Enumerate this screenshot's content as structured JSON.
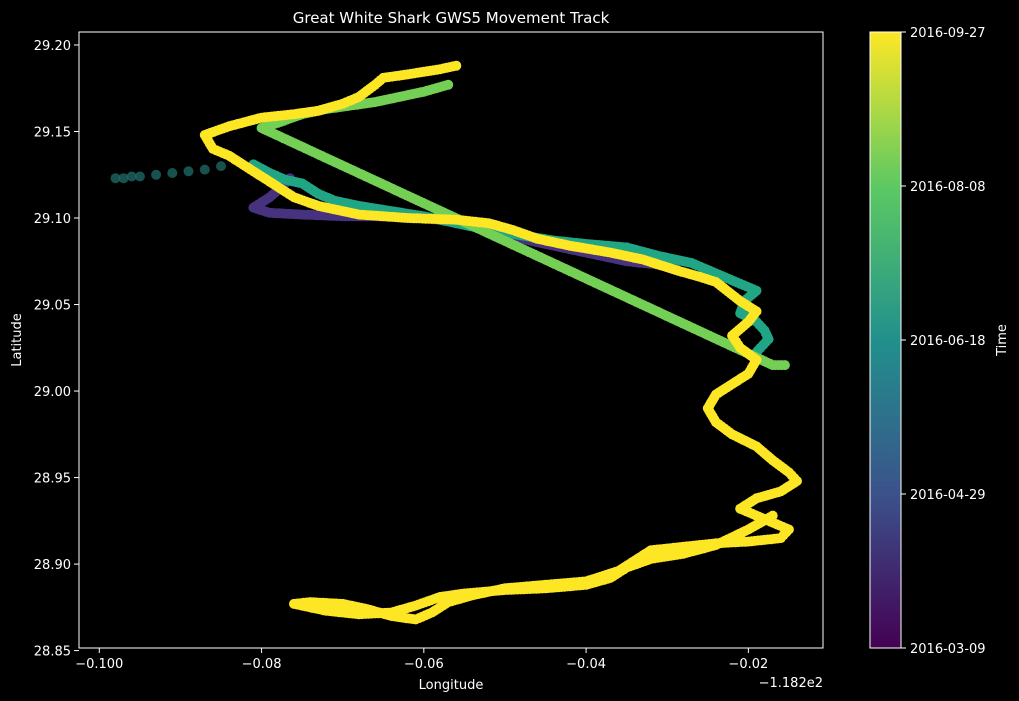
{
  "chart_data": {
    "type": "scatter",
    "title": "Great White Shark GWS5 Movement Track",
    "xlabel": "Longitude",
    "ylabel": "Latitude",
    "x_offset_text": "−1.182e2",
    "xlim": [
      -0.1025,
      -0.0108
    ],
    "ylim": [
      28.8515,
      29.2075
    ],
    "x_ticks": [
      -0.1,
      -0.08,
      -0.06,
      -0.04,
      -0.02
    ],
    "x_tick_labels": [
      "−0.100",
      "−0.08",
      "−0.06",
      "−0.04",
      "−0.02"
    ],
    "y_ticks": [
      28.85,
      28.9,
      28.95,
      29.0,
      29.05,
      29.1,
      29.15,
      29.2
    ],
    "y_tick_labels": [
      "28.85",
      "28.90",
      "28.95",
      "29.00",
      "29.05",
      "29.10",
      "29.15",
      "29.20"
    ],
    "colorbar": {
      "label": "Time",
      "colormap": "viridis",
      "ticks": [
        "2016-03-09",
        "2016-04-29",
        "2016-06-18",
        "2016-08-08",
        "2016-09-27"
      ]
    },
    "series": [
      {
        "color": "#46327e",
        "time_frac": 0.12,
        "alpha": 1.0,
        "points": [
          [
            -0.0765,
            29.123
          ],
          [
            -0.0775,
            29.118
          ],
          [
            -0.079,
            29.112
          ],
          [
            -0.081,
            29.106
          ],
          [
            -0.079,
            29.103
          ],
          [
            -0.075,
            29.102
          ],
          [
            -0.07,
            29.101
          ],
          [
            -0.065,
            29.101
          ],
          [
            -0.06,
            29.1
          ],
          [
            -0.055,
            29.097
          ],
          [
            -0.05,
            29.09
          ],
          [
            -0.045,
            29.085
          ],
          [
            -0.04,
            29.08
          ],
          [
            -0.035,
            29.075
          ],
          [
            -0.031,
            29.073
          ],
          [
            -0.029,
            29.072
          ]
        ]
      },
      {
        "color": "#21a685",
        "time_frac": 0.55,
        "alpha": 1.0,
        "points": [
          [
            -0.081,
            29.131
          ],
          [
            -0.079,
            29.126
          ],
          [
            -0.077,
            29.122
          ],
          [
            -0.075,
            29.12
          ],
          [
            -0.073,
            29.114
          ],
          [
            -0.071,
            29.11
          ],
          [
            -0.068,
            29.107
          ],
          [
            -0.064,
            29.104
          ],
          [
            -0.06,
            29.101
          ],
          [
            -0.056,
            29.097
          ],
          [
            -0.052,
            29.093
          ],
          [
            -0.048,
            29.09
          ],
          [
            -0.044,
            29.087
          ],
          [
            -0.04,
            29.085
          ],
          [
            -0.035,
            29.083
          ],
          [
            -0.031,
            29.078
          ],
          [
            -0.027,
            29.074
          ],
          [
            -0.024,
            29.068
          ],
          [
            -0.021,
            29.062
          ],
          [
            -0.019,
            29.058
          ],
          [
            -0.0205,
            29.052
          ],
          [
            -0.021,
            29.045
          ],
          [
            -0.019,
            29.04
          ],
          [
            -0.018,
            29.035
          ],
          [
            -0.0175,
            29.03
          ],
          [
            -0.0185,
            29.025
          ],
          [
            -0.0195,
            29.02
          ]
        ]
      },
      {
        "color": "#1f6e6a",
        "time_frac": 0.45,
        "alpha": 0.75,
        "points": [
          [
            -0.098,
            29.123
          ],
          [
            -0.097,
            29.123
          ],
          [
            -0.096,
            29.124
          ],
          [
            -0.095,
            29.124
          ],
          [
            -0.093,
            29.125
          ],
          [
            -0.091,
            29.126
          ],
          [
            -0.089,
            29.127
          ],
          [
            -0.087,
            29.128
          ],
          [
            -0.085,
            29.13
          ]
        ]
      },
      {
        "color": "#74d055",
        "time_frac": 0.78,
        "alpha": 1.0,
        "points": [
          [
            -0.057,
            29.177
          ],
          [
            -0.06,
            29.173
          ],
          [
            -0.063,
            29.17
          ],
          [
            -0.066,
            29.167
          ],
          [
            -0.069,
            29.165
          ],
          [
            -0.072,
            29.163
          ],
          [
            -0.075,
            29.16
          ],
          [
            -0.078,
            29.155
          ],
          [
            -0.08,
            29.152
          ],
          [
            -0.017,
            29.015
          ],
          [
            -0.0155,
            29.015
          ]
        ]
      },
      {
        "color": "#fde725",
        "time_frac": 1.0,
        "alpha": 1.0,
        "points": [
          [
            -0.056,
            29.188
          ],
          [
            -0.058,
            29.186
          ],
          [
            -0.062,
            29.183
          ],
          [
            -0.065,
            29.181
          ],
          [
            -0.066,
            29.177
          ],
          [
            -0.068,
            29.17
          ],
          [
            -0.07,
            29.166
          ],
          [
            -0.073,
            29.162
          ],
          [
            -0.076,
            29.16
          ],
          [
            -0.08,
            29.158
          ],
          [
            -0.084,
            29.153
          ],
          [
            -0.087,
            29.148
          ],
          [
            -0.086,
            29.14
          ],
          [
            -0.084,
            29.136
          ],
          [
            -0.082,
            29.13
          ],
          [
            -0.08,
            29.124
          ],
          [
            -0.078,
            29.118
          ],
          [
            -0.076,
            29.112
          ],
          [
            -0.073,
            29.107
          ],
          [
            -0.068,
            29.102
          ],
          [
            -0.062,
            29.1
          ],
          [
            -0.056,
            29.099
          ],
          [
            -0.052,
            29.097
          ],
          [
            -0.049,
            29.093
          ],
          [
            -0.046,
            29.088
          ],
          [
            -0.042,
            29.084
          ],
          [
            -0.037,
            29.08
          ],
          [
            -0.033,
            29.076
          ],
          [
            -0.029,
            29.07
          ],
          [
            -0.026,
            29.066
          ],
          [
            -0.024,
            29.063
          ],
          [
            -0.021,
            29.052
          ],
          [
            -0.019,
            29.046
          ],
          [
            -0.02,
            29.04
          ],
          [
            -0.022,
            29.032
          ],
          [
            -0.021,
            29.025
          ],
          [
            -0.019,
            29.018
          ],
          [
            -0.02,
            29.01
          ],
          [
            -0.022,
            29.004
          ],
          [
            -0.024,
            28.998
          ],
          [
            -0.025,
            28.99
          ],
          [
            -0.024,
            28.982
          ],
          [
            -0.022,
            28.975
          ],
          [
            -0.019,
            28.968
          ],
          [
            -0.017,
            28.96
          ],
          [
            -0.015,
            28.953
          ],
          [
            -0.014,
            28.948
          ],
          [
            -0.016,
            28.942
          ],
          [
            -0.019,
            28.938
          ],
          [
            -0.021,
            28.932
          ],
          [
            -0.018,
            28.926
          ],
          [
            -0.015,
            28.92
          ],
          [
            -0.016,
            28.915
          ],
          [
            -0.02,
            28.913
          ],
          [
            -0.024,
            28.912
          ],
          [
            -0.028,
            28.91
          ],
          [
            -0.032,
            28.908
          ],
          [
            -0.034,
            28.902
          ],
          [
            -0.036,
            28.896
          ],
          [
            -0.04,
            28.89
          ],
          [
            -0.045,
            28.888
          ],
          [
            -0.05,
            28.886
          ],
          [
            -0.054,
            28.882
          ],
          [
            -0.057,
            28.878
          ],
          [
            -0.059,
            28.872
          ],
          [
            -0.061,
            28.868
          ],
          [
            -0.064,
            28.87
          ],
          [
            -0.067,
            28.874
          ],
          [
            -0.07,
            28.877
          ],
          [
            -0.074,
            28.878
          ],
          [
            -0.076,
            28.877
          ],
          [
            -0.072,
            28.873
          ],
          [
            -0.068,
            28.871
          ],
          [
            -0.064,
            28.872
          ],
          [
            -0.061,
            28.876
          ],
          [
            -0.058,
            28.881
          ],
          [
            -0.055,
            28.883
          ],
          [
            -0.05,
            28.885
          ],
          [
            -0.045,
            28.886
          ],
          [
            -0.04,
            28.888
          ],
          [
            -0.037,
            28.892
          ],
          [
            -0.035,
            28.898
          ],
          [
            -0.032,
            28.903
          ],
          [
            -0.028,
            28.906
          ],
          [
            -0.024,
            28.911
          ],
          [
            -0.02,
            28.92
          ],
          [
            -0.017,
            28.928
          ]
        ]
      }
    ]
  }
}
